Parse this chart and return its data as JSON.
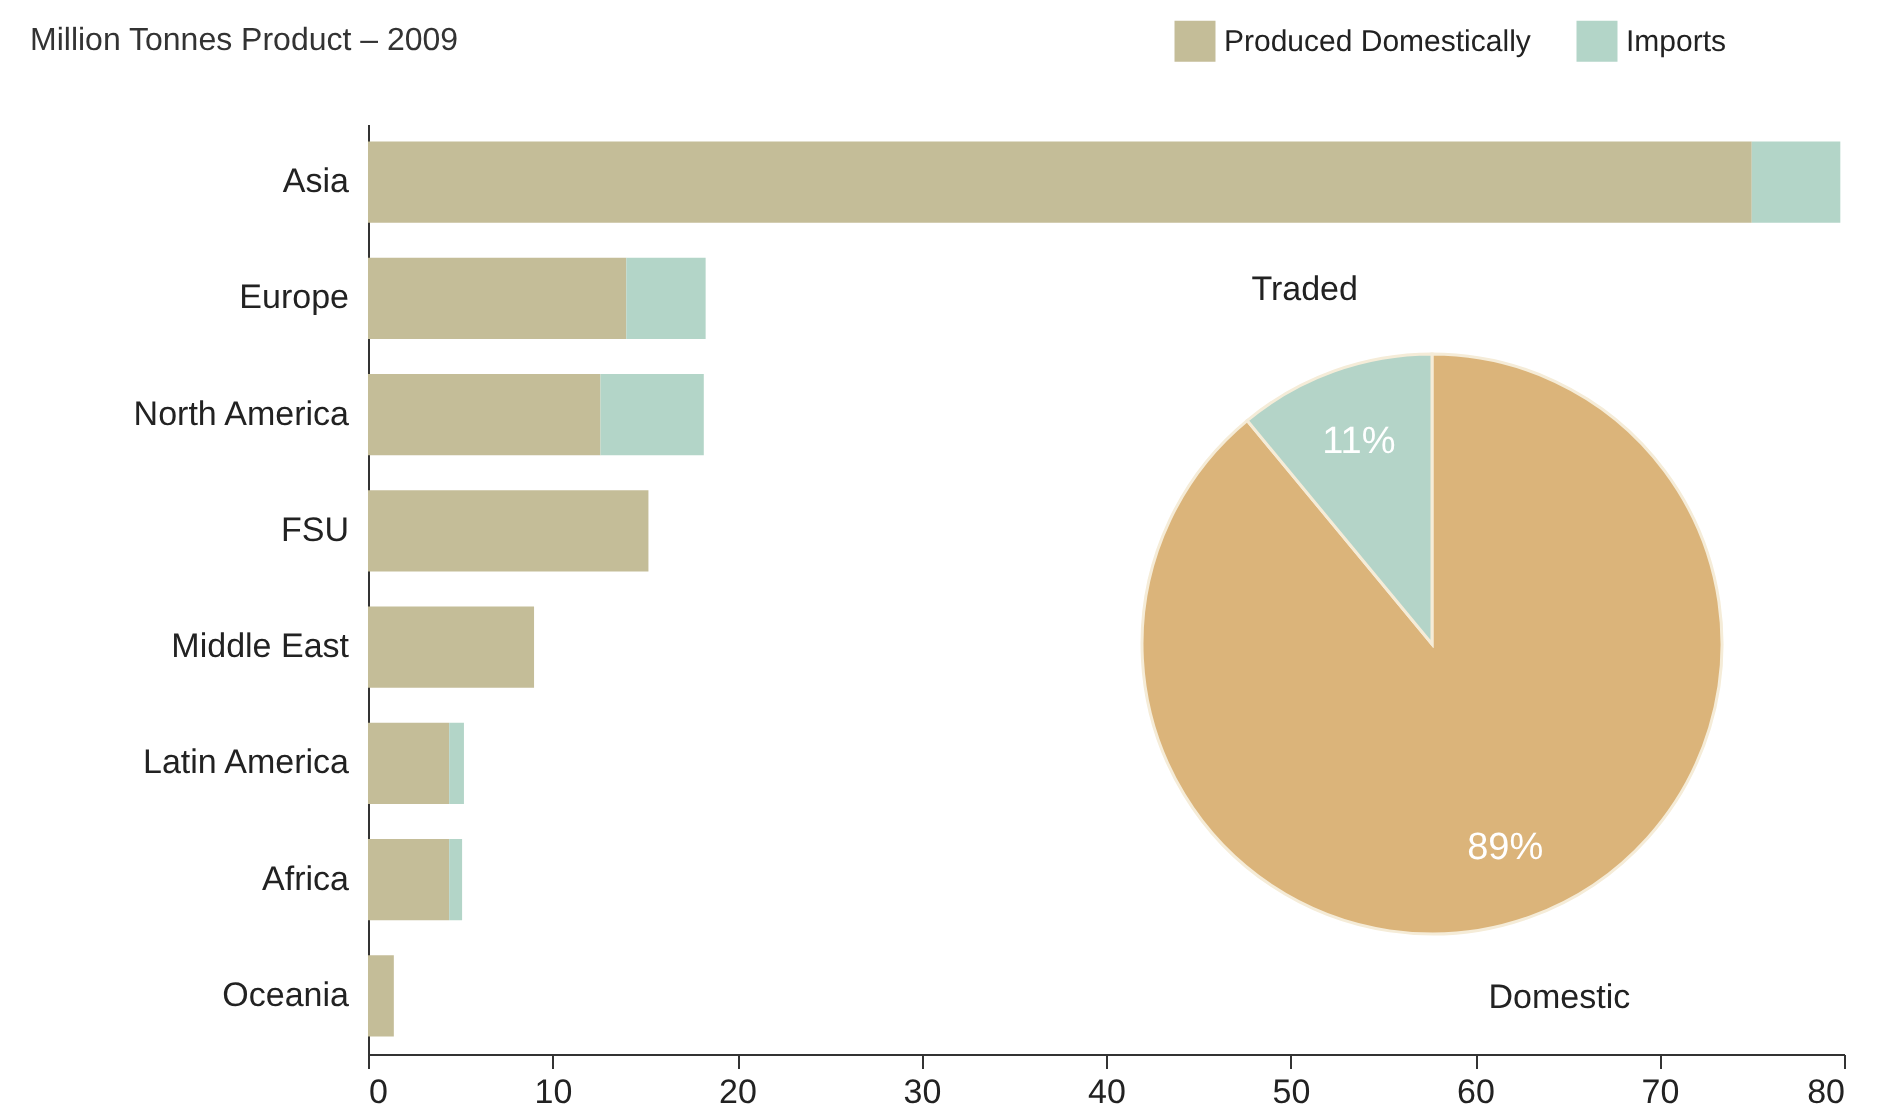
{
  "chart_data": [
    {
      "type": "bar",
      "title": "Million Tonnes Product – 2009",
      "orientation": "horizontal",
      "stacked": true,
      "legend": "top right",
      "categories": [
        "Asia",
        "Europe",
        "North America",
        "FSU",
        "Middle East",
        "Latin America",
        "Africa",
        "Oceania"
      ],
      "series": [
        {
          "name": "Produced Domestically",
          "color": "#c4bd98",
          "values": [
            75.0,
            14.0,
            12.6,
            15.2,
            9.0,
            4.4,
            4.4,
            1.4
          ]
        },
        {
          "name": "Imports",
          "color": "#b3d5c8",
          "values": [
            4.8,
            4.3,
            5.6,
            0,
            0,
            0.8,
            0.7,
            0
          ]
        }
      ],
      "xlim": [
        0,
        80
      ],
      "xticks": [
        0,
        10,
        20,
        30,
        40,
        50,
        60,
        70,
        80
      ]
    },
    {
      "type": "pie",
      "categories": [
        "Domestic",
        "Traded"
      ],
      "values": [
        89,
        11
      ],
      "colors": [
        "#dbb47a",
        "#b4d4c8"
      ],
      "value_labels": [
        "89%",
        "11%"
      ]
    }
  ]
}
